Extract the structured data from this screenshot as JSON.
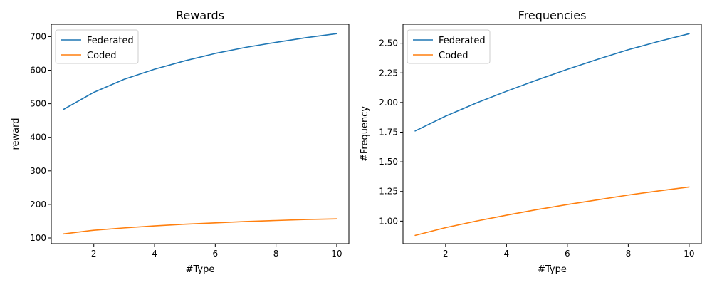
{
  "chart_data": [
    {
      "type": "line",
      "title": "Rewards",
      "xlabel": "#Type",
      "ylabel": "reward",
      "x": [
        1,
        2,
        3,
        4,
        5,
        6,
        7,
        8,
        9,
        10
      ],
      "xticks": [
        "2",
        "4",
        "6",
        "8",
        "10"
      ],
      "yticks": [
        "100",
        "200",
        "300",
        "400",
        "500",
        "600",
        "700"
      ],
      "xlim": [
        0.6,
        10.4
      ],
      "ylim": [
        83,
        737
      ],
      "grid": false,
      "legend_position": "top-left",
      "series": [
        {
          "name": "Federated",
          "color": "#1f77b4",
          "values": [
            483,
            534,
            573,
            603,
            628,
            650,
            668,
            683,
            697,
            709
          ]
        },
        {
          "name": "Coded",
          "color": "#ff7f0e",
          "values": [
            112,
            123,
            130,
            136,
            141,
            145,
            149,
            152,
            155,
            157
          ]
        }
      ]
    },
    {
      "type": "line",
      "title": "Frequencies",
      "xlabel": "#Type",
      "ylabel": "#Frequency",
      "x": [
        1,
        2,
        3,
        4,
        5,
        6,
        7,
        8,
        9,
        10
      ],
      "xticks": [
        "2",
        "4",
        "6",
        "8",
        "10"
      ],
      "yticks": [
        "1.00",
        "1.25",
        "1.50",
        "1.75",
        "2.00",
        "2.25",
        "2.50"
      ],
      "xlim": [
        0.6,
        10.4
      ],
      "ylim": [
        0.81,
        2.66
      ],
      "grid": false,
      "legend_position": "top-left",
      "series": [
        {
          "name": "Federated",
          "color": "#1f77b4",
          "values": [
            1.76,
            1.885,
            1.995,
            2.095,
            2.19,
            2.28,
            2.365,
            2.445,
            2.515,
            2.58
          ]
        },
        {
          "name": "Coded",
          "color": "#ff7f0e",
          "values": [
            0.88,
            0.945,
            1.0,
            1.05,
            1.097,
            1.14,
            1.18,
            1.22,
            1.255,
            1.288
          ]
        }
      ]
    }
  ]
}
